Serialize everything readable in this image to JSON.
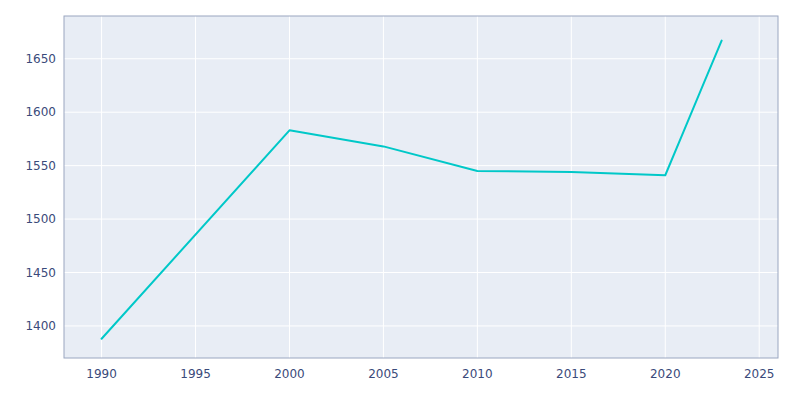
{
  "chart_data": {
    "type": "line",
    "x": [
      1990,
      2000,
      2005,
      2010,
      2015,
      2020,
      2021,
      2022,
      2023
    ],
    "values": [
      1388,
      1583,
      1568,
      1545,
      1544,
      1541,
      1583,
      1625,
      1667
    ],
    "color": "#00C8C8",
    "xlim": [
      1988,
      2026
    ],
    "ylim": [
      1370,
      1690
    ],
    "xticks": [
      1990,
      1995,
      2000,
      2005,
      2010,
      2015,
      2020,
      2025
    ],
    "yticks": [
      1400,
      1450,
      1500,
      1550,
      1600,
      1650
    ],
    "grid": true
  }
}
